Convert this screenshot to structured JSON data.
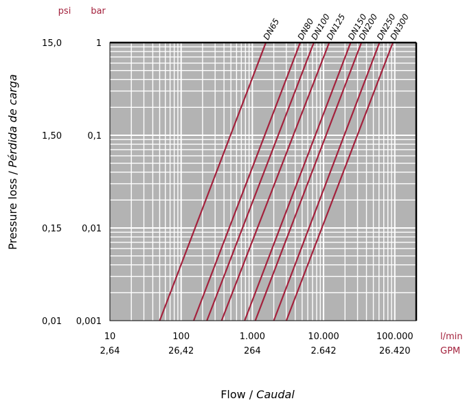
{
  "chart_data": {
    "type": "line",
    "x_scale": "log",
    "y_scale": "log",
    "xlim": [
      10,
      200000
    ],
    "ylim": [
      0.001,
      1
    ],
    "grid": true,
    "x_unit_primary": "l/min",
    "x_unit_secondary": "GPM",
    "y_unit_primary": "bar",
    "y_unit_secondary": "psi",
    "xlabel": "Flow / ",
    "xlabel_italic": "Caudal",
    "ylabel": "Pressure loss / ",
    "ylabel_italic": "Pérdida de carga",
    "x_ticks": [
      {
        "value": 10,
        "primary": "10",
        "secondary": "2,64"
      },
      {
        "value": 100,
        "primary": "100",
        "secondary": "26,42"
      },
      {
        "value": 1000,
        "primary": "1.000",
        "secondary": "264"
      },
      {
        "value": 10000,
        "primary": "10.000",
        "secondary": "2.642"
      },
      {
        "value": 100000,
        "primary": "100.000",
        "secondary": "26.420"
      }
    ],
    "y_ticks": [
      {
        "value": 1,
        "primary": "1",
        "secondary": "15,0"
      },
      {
        "value": 0.1,
        "primary": "0,1",
        "secondary": "1,50"
      },
      {
        "value": 0.01,
        "primary": "0,01",
        "secondary": "0,15"
      },
      {
        "value": 0.001,
        "primary": "0,001",
        "secondary": "0,01"
      }
    ],
    "series": [
      {
        "name": "DN65",
        "points": [
          [
            50,
            0.001
          ],
          [
            1550,
            1
          ]
        ]
      },
      {
        "name": "DN80",
        "points": [
          [
            150,
            0.001
          ],
          [
            4700,
            1
          ]
        ]
      },
      {
        "name": "DN100",
        "points": [
          [
            230,
            0.001
          ],
          [
            7300,
            1
          ]
        ]
      },
      {
        "name": "DN125",
        "points": [
          [
            370,
            0.001
          ],
          [
            12000,
            1
          ]
        ]
      },
      {
        "name": "DN150",
        "points": [
          [
            780,
            0.001
          ],
          [
            24000,
            1
          ]
        ]
      },
      {
        "name": "DN200",
        "points": [
          [
            1100,
            0.001
          ],
          [
            34000,
            1
          ]
        ]
      },
      {
        "name": "DN250",
        "points": [
          [
            2000,
            0.001
          ],
          [
            61000,
            1
          ]
        ]
      },
      {
        "name": "DN300",
        "points": [
          [
            3000,
            0.001
          ],
          [
            94000,
            1
          ]
        ]
      }
    ],
    "colors": {
      "background": "#b3b3b3",
      "grid": "#ffffff",
      "line": "#a3213c",
      "unit_label": "#a3213c",
      "frame": "#000000"
    }
  }
}
